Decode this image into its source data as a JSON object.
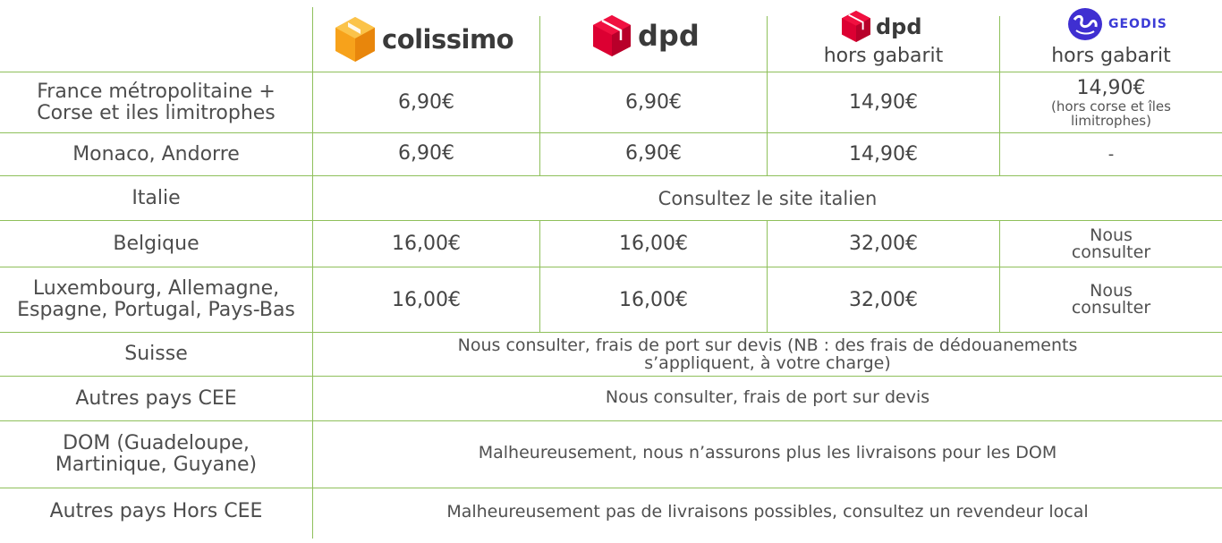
{
  "header": {
    "col1": {
      "brand": "colissimo",
      "icon": "colissimo-box-icon",
      "color": "#f39c12"
    },
    "col2": {
      "brand": "dpd",
      "icon": "dpd-cube-icon",
      "color": "#dc0032"
    },
    "col3": {
      "brand": "dpd",
      "sub": "hors gabarit",
      "icon": "dpd-cube-icon",
      "color": "#dc0032"
    },
    "col4": {
      "brand": "GEODIS",
      "sub": "hors gabarit",
      "icon": "geodis-globe-icon",
      "color": "#3b3bd6"
    }
  },
  "rows": [
    {
      "country_lines": [
        "France métropolitaine +",
        "Corse et iles limitrophes"
      ],
      "c1": "6,90€",
      "c2": "6,90€",
      "c3": "14,90€",
      "c4": "14,90€",
      "c4_note_lines": [
        "(hors corse et îles",
        "limitrophes)"
      ]
    },
    {
      "country_lines": [
        "Monaco, Andorre"
      ],
      "c1": "6,90€",
      "c2": "6,90€",
      "c3": "14,90€",
      "c4": "-"
    },
    {
      "country_lines": [
        "Italie"
      ],
      "span_lines": [
        "Consultez le site italien"
      ]
    },
    {
      "country_lines": [
        "Belgique"
      ],
      "c1": "16,00€",
      "c2": "16,00€",
      "c3": "32,00€",
      "c4_lines": [
        "Nous",
        "consulter"
      ]
    },
    {
      "country_lines": [
        "Luxembourg, Allemagne,",
        "Espagne, Portugal, Pays-Bas"
      ],
      "c1": "16,00€",
      "c2": "16,00€",
      "c3": "32,00€",
      "c4_lines": [
        "Nous",
        "consulter"
      ]
    },
    {
      "country_lines": [
        "Suisse"
      ],
      "span_lines": [
        "Nous consulter, frais de port sur devis (NB : des frais de dédouanements",
        "s’appliquent, à votre charge)"
      ]
    },
    {
      "country_lines": [
        "Autres pays CEE"
      ],
      "span_lines": [
        "Nous consulter, frais de port sur devis"
      ]
    },
    {
      "country_lines": [
        "DOM (Guadeloupe,",
        "Martinique, Guyane)"
      ],
      "span_lines": [
        "Malheureusement, nous n’assurons plus les livraisons pour les DOM"
      ]
    },
    {
      "country_lines": [
        "Autres pays Hors CEE"
      ],
      "span_lines": [
        "Malheureusement pas de livraisons possibles, consultez un revendeur local"
      ]
    }
  ]
}
